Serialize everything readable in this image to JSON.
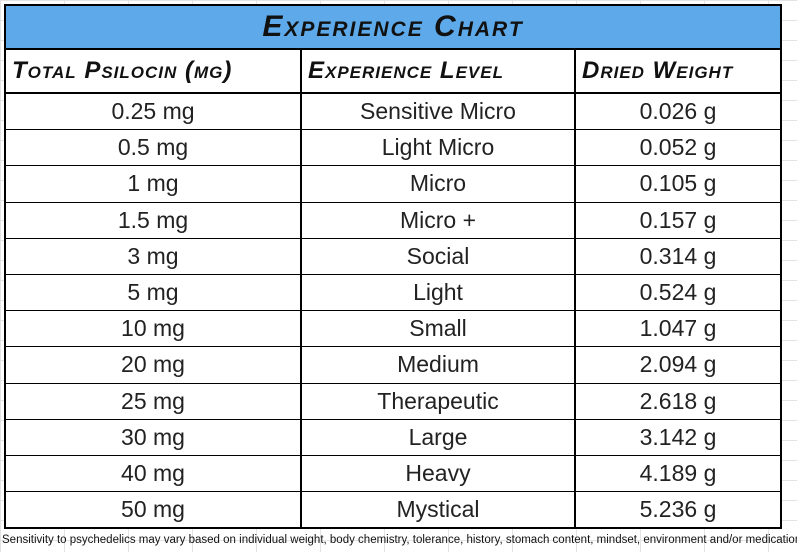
{
  "title": "Experience Chart",
  "headers": [
    "Total Psilocin (mg)",
    "Experience Level",
    "Dried Weight"
  ],
  "rows": [
    [
      "0.25 mg",
      "Sensitive Micro",
      "0.026 g"
    ],
    [
      "0.5 mg",
      "Light Micro",
      "0.052 g"
    ],
    [
      "1 mg",
      "Micro",
      "0.105 g"
    ],
    [
      "1.5 mg",
      "Micro +",
      "0.157 g"
    ],
    [
      "3 mg",
      "Social",
      "0.314 g"
    ],
    [
      "5 mg",
      "Light",
      "0.524 g"
    ],
    [
      "10 mg",
      "Small",
      "1.047 g"
    ],
    [
      "20 mg",
      "Medium",
      "2.094 g"
    ],
    [
      "25 mg",
      "Therapeutic",
      "2.618 g"
    ],
    [
      "30 mg",
      "Large",
      "3.142 g"
    ],
    [
      "40 mg",
      "Heavy",
      "4.189 g"
    ],
    [
      "50 mg",
      "Mystical",
      "5.236 g"
    ]
  ],
  "footnote": "Sensitivity to psychedelics may vary based on individual weight, body chemistry, tolerance, history, stomach content, mindset, environment and/or medication.",
  "colors": {
    "title_bg": "#5da9e9",
    "border": "#000000"
  }
}
